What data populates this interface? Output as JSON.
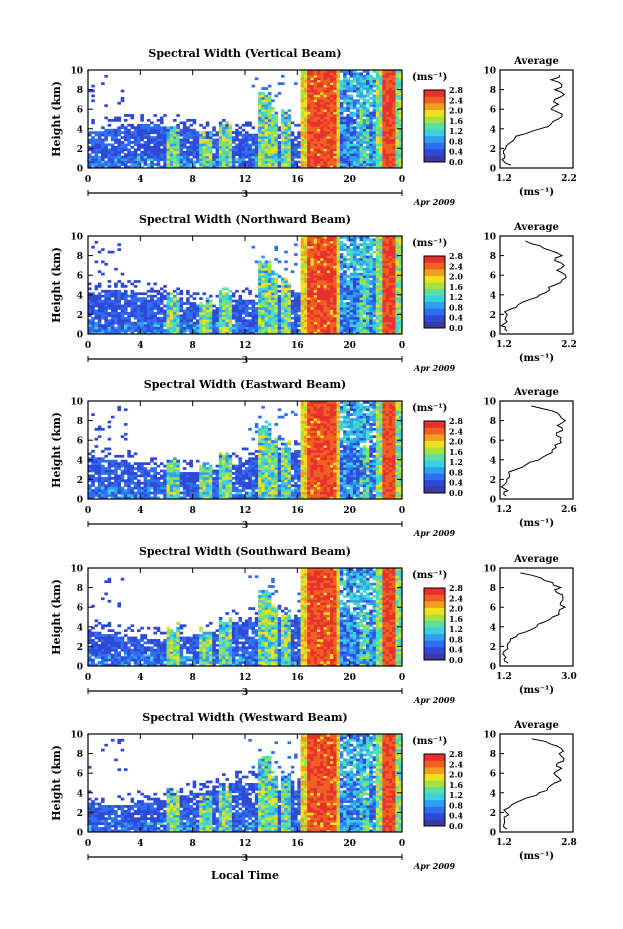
{
  "figure": {
    "xlabel": "Local Time",
    "date_label": "Apr 2009",
    "day_label": "3",
    "colorbar_unit": "(ms⁻¹)",
    "colorbar_ticks": [
      "0.0",
      "0.4",
      "0.8",
      "1.2",
      "1.6",
      "2.0",
      "2.4",
      "2.8"
    ],
    "colorbar_colors": [
      "#3a3aa0",
      "#2f48d8",
      "#2f6ef0",
      "#2fa0f0",
      "#3ad0e0",
      "#5ae0a0",
      "#a8e040",
      "#f0e020",
      "#f0a020",
      "#f06020",
      "#e83030"
    ],
    "avg_title": "Average",
    "avg_unit": "(ms⁻¹)"
  },
  "chart_data": [
    {
      "type": "heatmap",
      "title": "Spectral Width (Vertical Beam)",
      "ylabel": "Height (km)",
      "xlim": [
        0,
        24
      ],
      "ylim": [
        0,
        10
      ],
      "x_ticks": [
        "0",
        "4",
        "8",
        "12",
        "16",
        "20",
        "0"
      ],
      "y_ticks": [
        "0",
        "2",
        "4",
        "6",
        "8",
        "10"
      ],
      "avg_profile": {
        "xlim": [
          1.2,
          2.2
        ],
        "x_ticks": [
          "1.2",
          "2.2"
        ],
        "height": [
          0.3,
          0.7,
          1.0,
          1.5,
          2.0,
          2.5,
          3.0,
          3.5,
          4.0,
          4.5,
          5.0,
          5.5,
          6.0,
          6.5,
          7.0,
          7.5,
          8.0,
          8.5,
          9.0,
          9.5
        ],
        "values": [
          1.35,
          1.25,
          1.26,
          1.25,
          1.28,
          1.32,
          1.4,
          1.55,
          1.75,
          1.9,
          2.0,
          2.05,
          1.9,
          2.0,
          1.95,
          2.08,
          1.95,
          2.05,
          1.9,
          2.02
        ]
      }
    },
    {
      "type": "heatmap",
      "title": "Spectral Width (Northward Beam)",
      "ylabel": "Height (km)",
      "xlim": [
        0,
        24
      ],
      "ylim": [
        0,
        10
      ],
      "x_ticks": [
        "0",
        "4",
        "8",
        "12",
        "16",
        "20",
        "0"
      ],
      "y_ticks": [
        "0",
        "2",
        "4",
        "6",
        "8",
        "10"
      ],
      "avg_profile": {
        "xlim": [
          1.2,
          2.2
        ],
        "x_ticks": [
          "1.2",
          "2.2"
        ],
        "height": [
          0.3,
          0.7,
          1.0,
          1.5,
          2.0,
          2.5,
          3.0,
          3.5,
          4.0,
          4.5,
          5.0,
          5.5,
          6.0,
          6.5,
          7.0,
          7.5,
          8.0,
          8.5,
          9.0,
          9.5
        ],
        "values": [
          1.3,
          1.28,
          1.25,
          1.27,
          1.3,
          1.33,
          1.45,
          1.6,
          1.75,
          1.88,
          1.95,
          2.05,
          2.1,
          1.98,
          2.08,
          1.95,
          2.05,
          1.9,
          1.75,
          1.55
        ]
      }
    },
    {
      "type": "heatmap",
      "title": "Spectral Width (Eastward Beam)",
      "ylabel": "Height (km)",
      "xlim": [
        0,
        24
      ],
      "ylim": [
        0,
        10
      ],
      "x_ticks": [
        "0",
        "4",
        "8",
        "12",
        "16",
        "20",
        "0"
      ],
      "y_ticks": [
        "0",
        "2",
        "4",
        "6",
        "8",
        "10"
      ],
      "avg_profile": {
        "xlim": [
          1.2,
          2.6
        ],
        "x_ticks": [
          "1.2",
          "2.6"
        ],
        "height": [
          0.3,
          0.7,
          1.0,
          1.5,
          2.0,
          2.5,
          3.0,
          3.5,
          4.0,
          4.5,
          5.0,
          5.5,
          6.0,
          6.5,
          7.0,
          7.5,
          8.0,
          8.5,
          9.0,
          9.5
        ],
        "values": [
          1.32,
          1.28,
          1.3,
          1.29,
          1.33,
          1.38,
          1.5,
          1.7,
          1.95,
          2.1,
          2.2,
          2.25,
          2.35,
          2.28,
          2.4,
          2.3,
          2.45,
          2.35,
          2.2,
          1.8
        ]
      }
    },
    {
      "type": "heatmap",
      "title": "Spectral Width (Southward Beam)",
      "ylabel": "Height (km)",
      "xlim": [
        0,
        24
      ],
      "ylim": [
        0,
        10
      ],
      "x_ticks": [
        "0",
        "4",
        "8",
        "12",
        "16",
        "20",
        "0"
      ],
      "y_ticks": [
        "0",
        "2",
        "4",
        "6",
        "8",
        "10"
      ],
      "avg_profile": {
        "xlim": [
          1.2,
          3.0
        ],
        "x_ticks": [
          "1.2",
          "3.0"
        ],
        "height": [
          0.3,
          0.7,
          1.0,
          1.5,
          2.0,
          2.5,
          3.0,
          3.5,
          4.0,
          4.5,
          5.0,
          5.5,
          6.0,
          6.5,
          7.0,
          7.5,
          8.0,
          8.5,
          9.0,
          9.5
        ],
        "values": [
          1.4,
          1.3,
          1.32,
          1.3,
          1.38,
          1.45,
          1.6,
          1.85,
          2.1,
          2.3,
          2.5,
          2.65,
          2.8,
          2.7,
          2.75,
          2.6,
          2.7,
          2.5,
          2.2,
          1.7
        ]
      }
    },
    {
      "type": "heatmap",
      "title": "Spectral Width (Westward Beam)",
      "ylabel": "Height (km)",
      "xlim": [
        0,
        24
      ],
      "ylim": [
        0,
        10
      ],
      "x_ticks": [
        "0",
        "4",
        "8",
        "12",
        "16",
        "20",
        "0"
      ],
      "y_ticks": [
        "0",
        "2",
        "4",
        "6",
        "8",
        "10"
      ],
      "avg_profile": {
        "xlim": [
          1.2,
          2.8
        ],
        "x_ticks": [
          "1.2",
          "2.8"
        ],
        "height": [
          0.3,
          0.7,
          1.0,
          1.5,
          2.0,
          2.5,
          3.0,
          3.5,
          4.0,
          4.5,
          5.0,
          5.5,
          6.0,
          6.5,
          7.0,
          7.5,
          8.0,
          8.5,
          9.0,
          9.5
        ],
        "values": [
          1.35,
          1.28,
          1.3,
          1.29,
          1.34,
          1.4,
          1.55,
          1.8,
          2.05,
          2.25,
          2.4,
          2.5,
          2.38,
          2.55,
          2.45,
          2.6,
          2.5,
          2.55,
          2.3,
          1.9
        ]
      }
    }
  ]
}
